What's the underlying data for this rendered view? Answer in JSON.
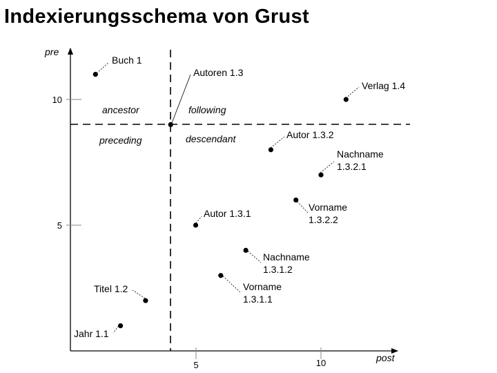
{
  "title": "Indexierungsschema von Grust",
  "axes": {
    "x_label": "post",
    "y_label": "pre",
    "x_ticks": [
      5,
      10
    ],
    "y_ticks": [
      5,
      10
    ]
  },
  "regions": {
    "ancestor": "ancestor",
    "following": "following",
    "preceding": "preceding",
    "descendant": "descendant"
  },
  "context_node": {
    "post": 4,
    "pre": 9
  },
  "chart_data": {
    "type": "scatter",
    "xlabel": "post",
    "ylabel": "pre",
    "xlim": [
      0,
      13
    ],
    "ylim": [
      0,
      12
    ],
    "points": [
      {
        "post": 1,
        "pre": 11,
        "label": [
          "Buch 1"
        ]
      },
      {
        "post": 11,
        "pre": 10,
        "label": [
          "Verlag 1.4"
        ]
      },
      {
        "post": 8,
        "pre": 8,
        "label": [
          "Autor 1.3.2"
        ]
      },
      {
        "post": 10,
        "pre": 7,
        "label": [
          "Nachname",
          "1.3.2.1"
        ]
      },
      {
        "post": 9,
        "pre": 6,
        "label": [
          "Vorname",
          "1.3.2.2"
        ]
      },
      {
        "post": 5,
        "pre": 5,
        "label": [
          "Autor 1.3.1"
        ]
      },
      {
        "post": 7,
        "pre": 4,
        "label": [
          "Nachname",
          "1.3.1.2"
        ]
      },
      {
        "post": 6,
        "pre": 3,
        "label": [
          "Vorname",
          "1.3.1.1"
        ]
      },
      {
        "post": 3,
        "pre": 2,
        "label": [
          "Titel 1.2"
        ]
      },
      {
        "post": 2,
        "pre": 1,
        "label": [
          "Jahr 1.1"
        ]
      },
      {
        "post": 4,
        "pre": 9,
        "label": [
          "Autoren 1.3"
        ]
      }
    ]
  }
}
